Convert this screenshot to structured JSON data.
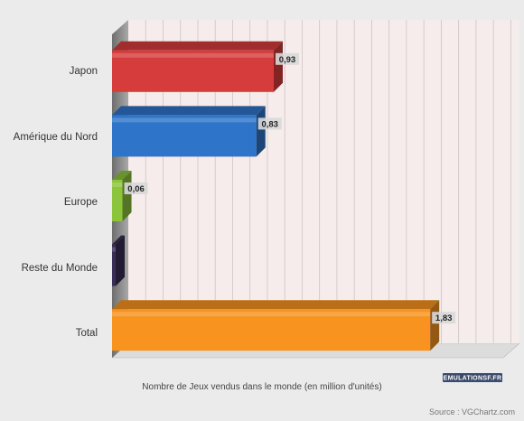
{
  "chart_data": {
    "type": "bar",
    "orientation": "horizontal",
    "categories": [
      "Japon",
      "Amérique du Nord",
      "Europe",
      "Reste du Monde",
      "Total"
    ],
    "values": [
      0.93,
      0.83,
      0.06,
      0,
      1.83
    ],
    "value_labels": [
      "0,93",
      "0,83",
      "0,06",
      "",
      "1,83"
    ],
    "colors": [
      "#d63c3c",
      "#2e74c8",
      "#8cc43c",
      "#3a2d55",
      "#f7931e"
    ],
    "xlabel": "Nombre de Jeux vendus dans le monde (en million d'unités)",
    "xlim": [
      0,
      2.25
    ],
    "grid": true,
    "legend": "none",
    "background": "#f6ecec"
  },
  "logo": {
    "text": "EMULATIONSF.FR"
  },
  "source": "Source : VGChartz.com"
}
